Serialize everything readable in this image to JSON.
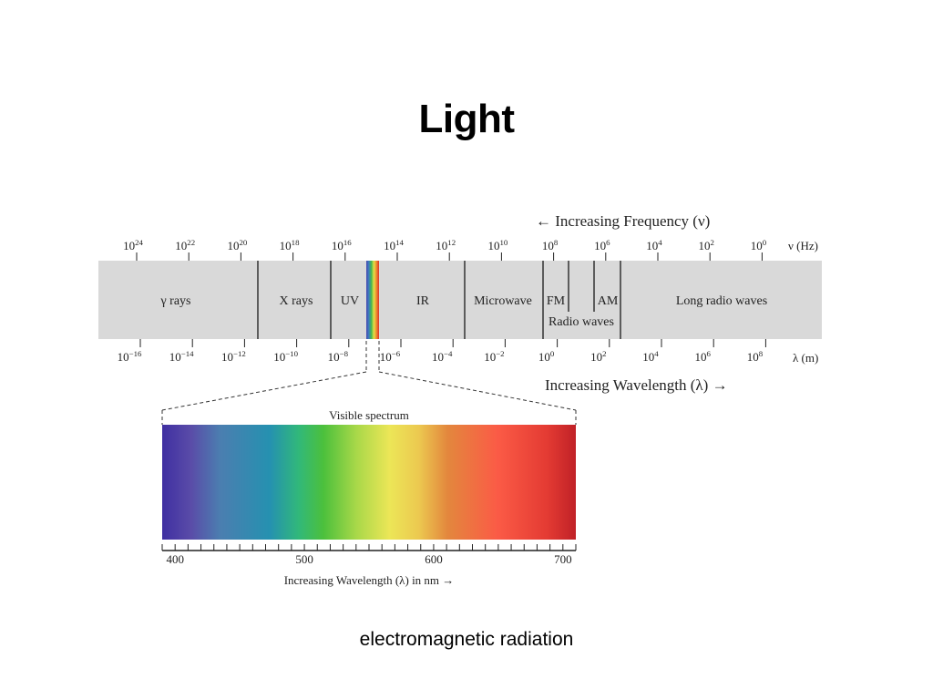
{
  "slide": {
    "title": "Light",
    "caption": "electromagnetic radiation"
  },
  "spectrum": {
    "frequency_arrow_label": "← Increasing Frequency (ν)",
    "frequency_unit": "ν (Hz)",
    "frequency_ticks": [
      {
        "base": "10",
        "exp": "24"
      },
      {
        "base": "10",
        "exp": "22"
      },
      {
        "base": "10",
        "exp": "20"
      },
      {
        "base": "10",
        "exp": "18"
      },
      {
        "base": "10",
        "exp": "16"
      },
      {
        "base": "10",
        "exp": "14"
      },
      {
        "base": "10",
        "exp": "12"
      },
      {
        "base": "10",
        "exp": "10"
      },
      {
        "base": "10",
        "exp": "8"
      },
      {
        "base": "10",
        "exp": "6"
      },
      {
        "base": "10",
        "exp": "4"
      },
      {
        "base": "10",
        "exp": "2"
      },
      {
        "base": "10",
        "exp": "0"
      }
    ],
    "wavelength_unit": "λ (m)",
    "wavelength_arrow_label": "Increasing Wavelength (λ) →",
    "wavelength_ticks": [
      {
        "base": "10",
        "exp": "−16"
      },
      {
        "base": "10",
        "exp": "−14"
      },
      {
        "base": "10",
        "exp": "−12"
      },
      {
        "base": "10",
        "exp": "−10"
      },
      {
        "base": "10",
        "exp": "−8"
      },
      {
        "base": "10",
        "exp": "−6"
      },
      {
        "base": "10",
        "exp": "−4"
      },
      {
        "base": "10",
        "exp": "−2"
      },
      {
        "base": "10",
        "exp": "0"
      },
      {
        "base": "10",
        "exp": "2"
      },
      {
        "base": "10",
        "exp": "4"
      },
      {
        "base": "10",
        "exp": "6"
      },
      {
        "base": "10",
        "exp": "8"
      }
    ],
    "regions": {
      "gamma": "γ rays",
      "xray": "X rays",
      "uv": "UV",
      "ir": "IR",
      "microwave": "Microwave",
      "fm": "FM",
      "am": "AM",
      "radio": "Radio waves",
      "long_radio": "Long radio waves"
    },
    "band_color": "#d9d9d9"
  },
  "visible": {
    "title": "Visible spectrum",
    "axis_label": "Increasing Wavelength (λ) in nm →",
    "tick_labels": [
      "400",
      "500",
      "600",
      "700"
    ],
    "range_nm": [
      390,
      710
    ]
  }
}
